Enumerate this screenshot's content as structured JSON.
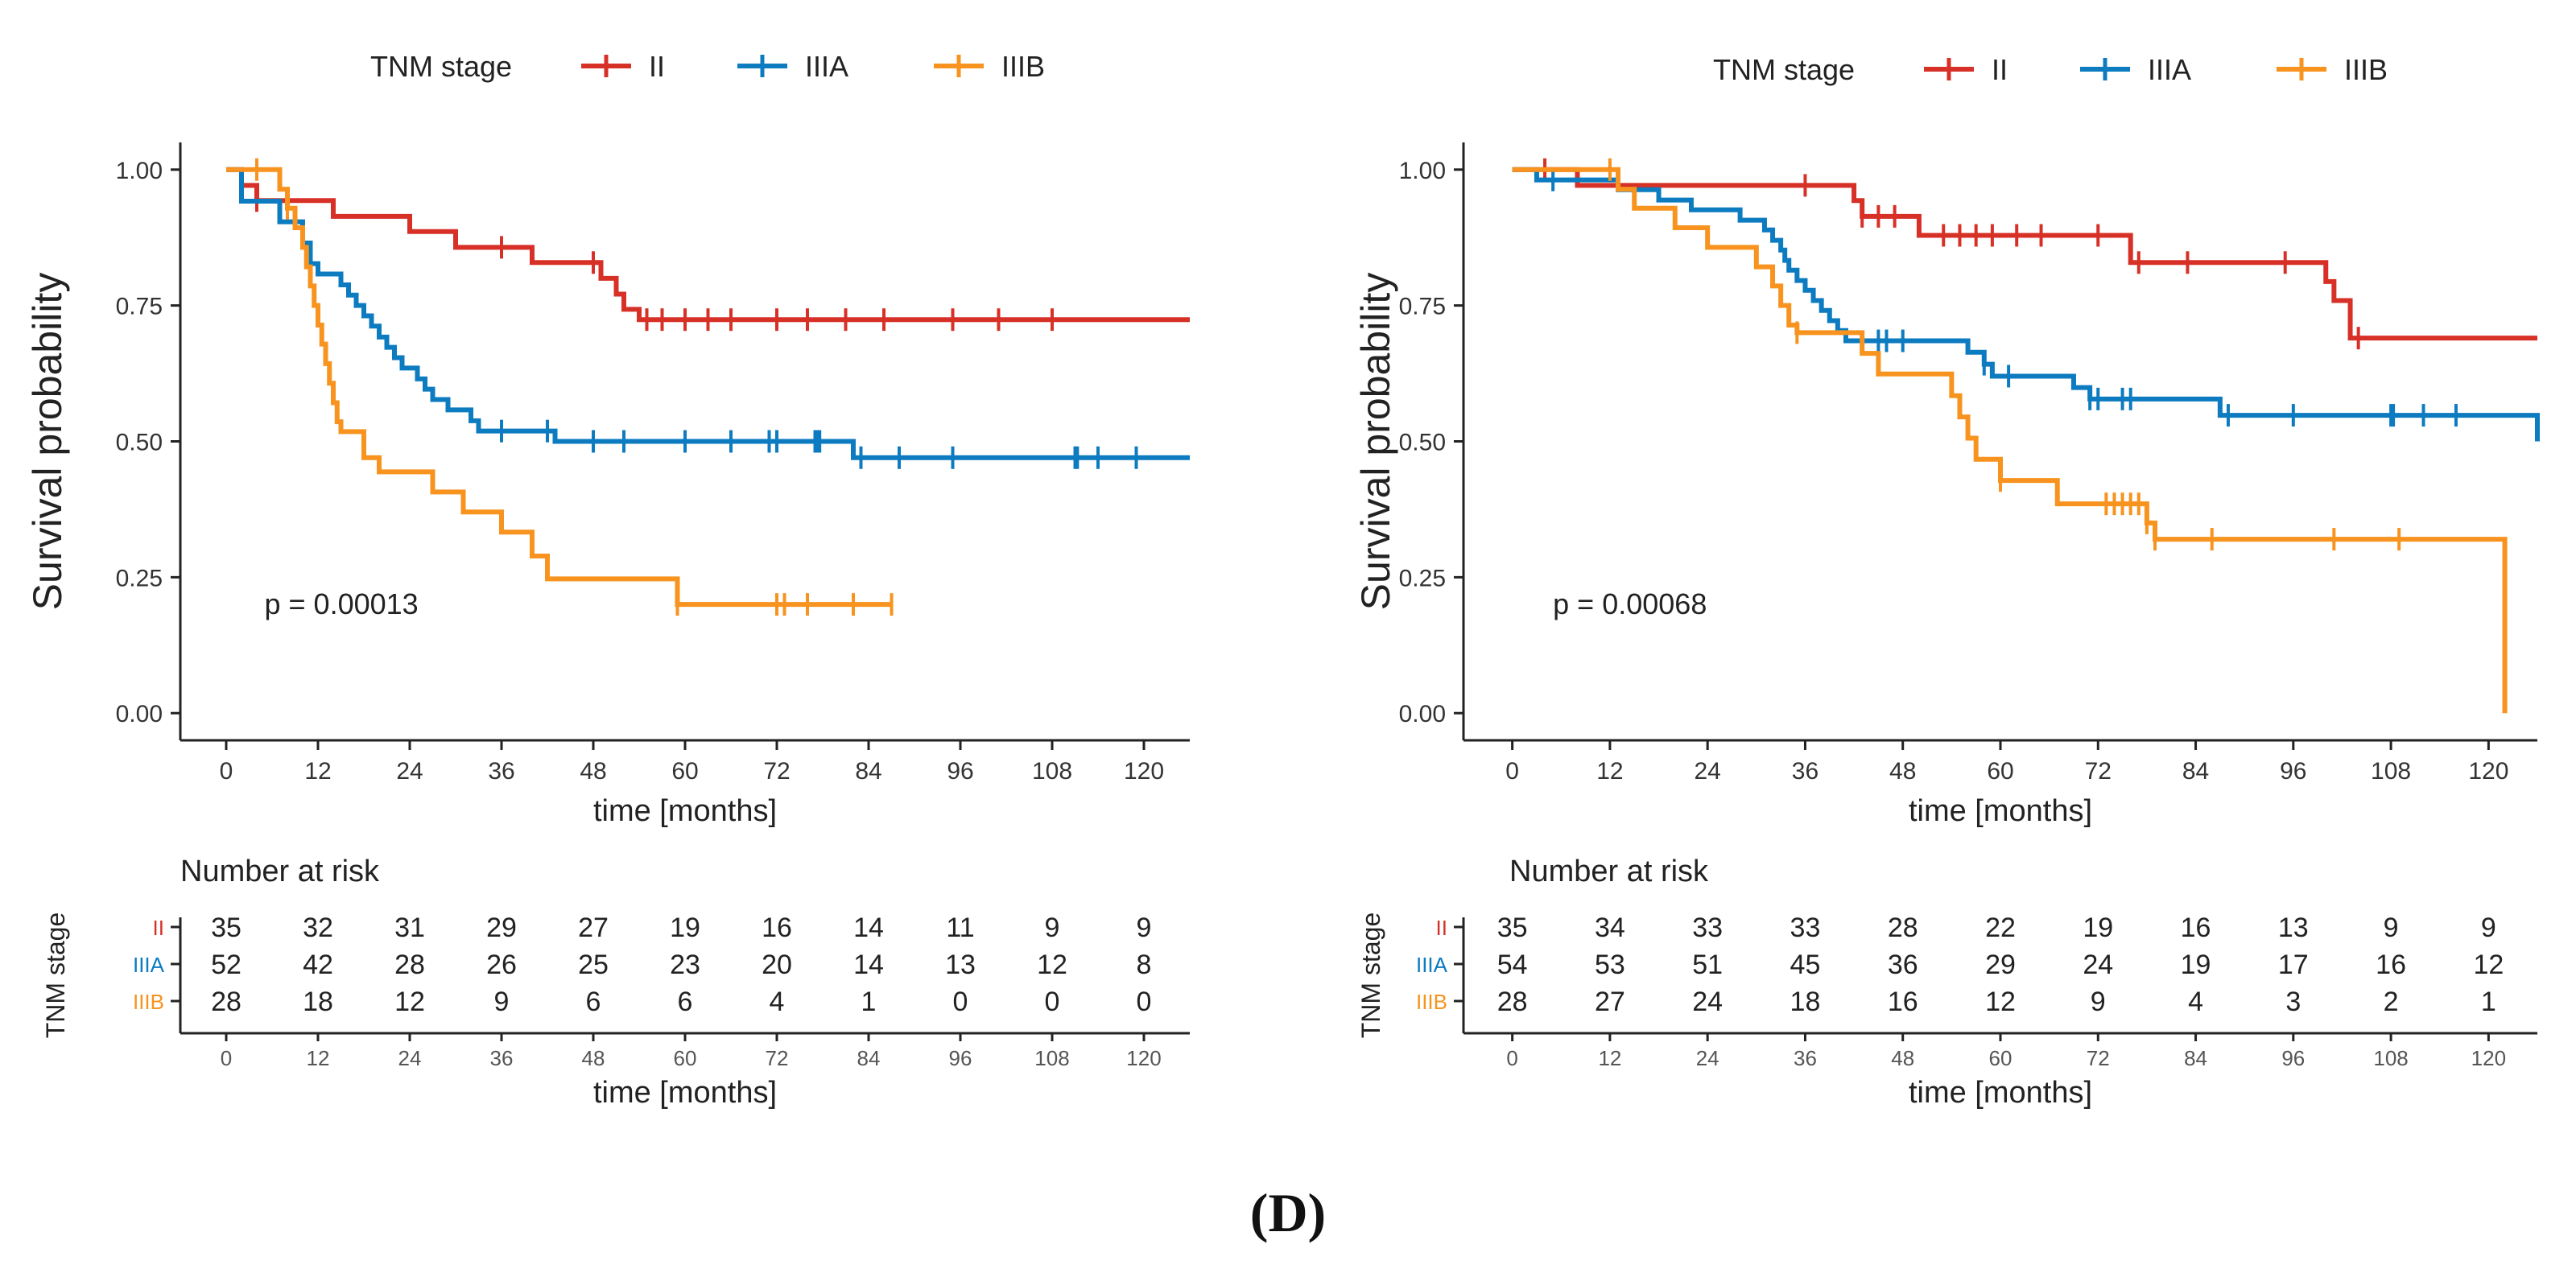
{
  "figure": {
    "panel_label": "(D)"
  },
  "colors": {
    "II": "#d73027",
    "IIIA": "#0c7bc0",
    "IIIB": "#f7931e",
    "axis": "#222222",
    "tick_text": "#555555"
  },
  "chart_data": [
    {
      "type": "line",
      "subtype": "kaplan-meier",
      "legend_title": "TNM stage",
      "legend_placement": "top",
      "ylabel": "Survival probability",
      "xlabel": "time [months]",
      "xlim": [
        -6,
        126
      ],
      "ylim": [
        -0.05,
        1.05
      ],
      "x_ticks": [
        0,
        12,
        24,
        36,
        48,
        60,
        72,
        84,
        96,
        108,
        120
      ],
      "x_tick_labels": [
        "0",
        "12",
        "24",
        "36",
        "48",
        "60",
        "72",
        "84",
        "96",
        "108",
        "120"
      ],
      "y_ticks": [
        0,
        0.25,
        0.5,
        0.75,
        1
      ],
      "y_tick_labels": [
        "0.00",
        "0.25",
        "0.50",
        "0.75",
        "1.00"
      ],
      "annotation": "p = 0.00013",
      "annotation_pos": {
        "x": 5,
        "y": 0.2
      },
      "series": [
        {
          "name": "II",
          "color": "#d73027",
          "end": 126,
          "steps": [
            [
              0,
              1
            ],
            [
              2,
              0.971
            ],
            [
              4,
              0.943
            ],
            [
              14,
              0.914
            ],
            [
              24,
              0.886
            ],
            [
              30,
              0.857
            ],
            [
              40,
              0.829
            ],
            [
              49,
              0.8
            ],
            [
              51,
              0.771
            ],
            [
              52,
              0.743
            ],
            [
              54,
              0.724
            ]
          ],
          "censors": [
            4,
            36,
            48,
            55,
            57,
            60,
            63,
            66,
            72,
            76,
            81,
            86,
            95,
            101,
            108
          ]
        },
        {
          "name": "IIIA",
          "color": "#0c7bc0",
          "end": 126,
          "steps": [
            [
              0,
              1
            ],
            [
              2,
              0.942
            ],
            [
              7,
              0.904
            ],
            [
              10,
              0.865
            ],
            [
              11,
              0.827
            ],
            [
              12,
              0.808
            ],
            [
              15,
              0.788
            ],
            [
              16,
              0.769
            ],
            [
              17,
              0.75
            ],
            [
              18,
              0.731
            ],
            [
              19,
              0.712
            ],
            [
              20,
              0.692
            ],
            [
              21,
              0.673
            ],
            [
              22,
              0.654
            ],
            [
              23,
              0.635
            ],
            [
              25,
              0.615
            ],
            [
              26,
              0.596
            ],
            [
              27,
              0.577
            ],
            [
              29,
              0.558
            ],
            [
              32,
              0.538
            ],
            [
              33,
              0.519
            ],
            [
              43,
              0.5
            ],
            [
              82,
              0.47
            ]
          ],
          "censors": [
            36,
            42,
            48,
            52,
            60,
            66,
            71,
            72,
            77,
            77.3,
            77.6,
            83,
            88,
            95,
            111,
            111.3,
            114,
            119
          ]
        },
        {
          "name": "IIIB",
          "color": "#f7931e",
          "end": 87,
          "steps": [
            [
              0,
              1
            ],
            [
              7,
              0.964
            ],
            [
              8,
              0.929
            ],
            [
              9,
              0.893
            ],
            [
              10,
              0.857
            ],
            [
              10.5,
              0.821
            ],
            [
              11,
              0.786
            ],
            [
              11.5,
              0.75
            ],
            [
              12,
              0.714
            ],
            [
              12.5,
              0.679
            ],
            [
              13,
              0.643
            ],
            [
              13.5,
              0.607
            ],
            [
              14,
              0.571
            ],
            [
              14.5,
              0.536
            ],
            [
              15,
              0.518
            ],
            [
              18,
              0.47
            ],
            [
              20,
              0.444
            ],
            [
              27,
              0.407
            ],
            [
              31,
              0.37
            ],
            [
              36,
              0.333
            ],
            [
              40,
              0.289
            ],
            [
              42,
              0.247
            ],
            [
              59,
              0.2
            ]
          ],
          "censors": [
            4,
            8,
            59,
            72,
            73,
            76,
            82,
            87
          ]
        }
      ],
      "risk_table": {
        "title": "Number at risk",
        "group_axis_label": "TNM stage",
        "xlabel": "time [months]",
        "groups": [
          "II",
          "IIIA",
          "IIIB"
        ],
        "rows": [
          [
            "35",
            "32",
            "31",
            "29",
            "27",
            "19",
            "16",
            "14",
            "11",
            "9",
            "9"
          ],
          [
            "52",
            "42",
            "28",
            "26",
            "25",
            "23",
            "20",
            "14",
            "13",
            "12",
            "8"
          ],
          [
            "28",
            "18",
            "12",
            "9",
            "6",
            "6",
            "4",
            "1",
            "0",
            "0",
            "0"
          ]
        ]
      }
    },
    {
      "type": "line",
      "subtype": "kaplan-meier",
      "legend_title": "TNM stage",
      "legend_placement": "top",
      "ylabel": "Survival probability",
      "xlabel": "time [months]",
      "xlim": [
        -6,
        126
      ],
      "ylim": [
        -0.05,
        1.05
      ],
      "x_ticks": [
        0,
        12,
        24,
        36,
        48,
        60,
        72,
        84,
        96,
        108,
        120
      ],
      "x_tick_labels": [
        "0",
        "12",
        "24",
        "36",
        "48",
        "60",
        "72",
        "84",
        "96",
        "108",
        "120"
      ],
      "y_ticks": [
        0,
        0.25,
        0.5,
        0.75,
        1
      ],
      "y_tick_labels": [
        "0.00",
        "0.25",
        "0.50",
        "0.75",
        "1.00"
      ],
      "annotation": "p = 0.00068",
      "annotation_pos": {
        "x": 5,
        "y": 0.2
      },
      "series": [
        {
          "name": "II",
          "color": "#d73027",
          "end": 126,
          "steps": [
            [
              0,
              1
            ],
            [
              8,
              0.971
            ],
            [
              42,
              0.943
            ],
            [
              43,
              0.914
            ],
            [
              50,
              0.879
            ],
            [
              76,
              0.829
            ],
            [
              100,
              0.794
            ],
            [
              101,
              0.759
            ],
            [
              103,
              0.69
            ]
          ],
          "censors": [
            4,
            36,
            43,
            45,
            47,
            53,
            55,
            57,
            59,
            62,
            65,
            72,
            77,
            83,
            95,
            104
          ]
        },
        {
          "name": "IIIA",
          "color": "#0c7bc0",
          "end": 126,
          "steps": [
            [
              0,
              1
            ],
            [
              3,
              0.981
            ],
            [
              13,
              0.963
            ],
            [
              18,
              0.944
            ],
            [
              22,
              0.926
            ],
            [
              28,
              0.907
            ],
            [
              31,
              0.889
            ],
            [
              32,
              0.87
            ],
            [
              33,
              0.852
            ],
            [
              33.5,
              0.833
            ],
            [
              34,
              0.815
            ],
            [
              35,
              0.796
            ],
            [
              36,
              0.778
            ],
            [
              37,
              0.759
            ],
            [
              38,
              0.741
            ],
            [
              39,
              0.722
            ],
            [
              40,
              0.704
            ],
            [
              41,
              0.685
            ],
            [
              56,
              0.664
            ],
            [
              58,
              0.642
            ],
            [
              59,
              0.62
            ],
            [
              69,
              0.599
            ],
            [
              71,
              0.578
            ],
            [
              87,
              0.548
            ],
            [
              126,
              0.5
            ]
          ],
          "censors": [
            5,
            45,
            46,
            48,
            58,
            61,
            71,
            72,
            75,
            76,
            88,
            96,
            108,
            108.3,
            112,
            116
          ]
        },
        {
          "name": "IIIB",
          "color": "#f7931e",
          "end": 122,
          "steps": [
            [
              0,
              1
            ],
            [
              13,
              0.964
            ],
            [
              15,
              0.929
            ],
            [
              20,
              0.893
            ],
            [
              24,
              0.857
            ],
            [
              30,
              0.821
            ],
            [
              32,
              0.786
            ],
            [
              33,
              0.75
            ],
            [
              34,
              0.714
            ],
            [
              35,
              0.7
            ],
            [
              43,
              0.662
            ],
            [
              45,
              0.624
            ],
            [
              54,
              0.584
            ],
            [
              55,
              0.545
            ],
            [
              56,
              0.506
            ],
            [
              57,
              0.467
            ],
            [
              60,
              0.428
            ],
            [
              67,
              0.385
            ],
            [
              78,
              0.35
            ],
            [
              79,
              0.32
            ],
            [
              122,
              0
            ]
          ],
          "censors": [
            12,
            35,
            60,
            73,
            74,
            75,
            76,
            77,
            78,
            79,
            86,
            101,
            109
          ]
        }
      ],
      "risk_table": {
        "title": "Number at risk",
        "group_axis_label": "TNM stage",
        "xlabel": "time [months]",
        "groups": [
          "II",
          "IIIA",
          "IIIB"
        ],
        "rows": [
          [
            "35",
            "34",
            "33",
            "33",
            "28",
            "22",
            "19",
            "16",
            "13",
            "9",
            "9"
          ],
          [
            "54",
            "53",
            "51",
            "45",
            "36",
            "29",
            "24",
            "19",
            "17",
            "16",
            "12"
          ],
          [
            "28",
            "27",
            "24",
            "18",
            "16",
            "12",
            "9",
            "4",
            "3",
            "2",
            "1"
          ]
        ]
      }
    }
  ]
}
